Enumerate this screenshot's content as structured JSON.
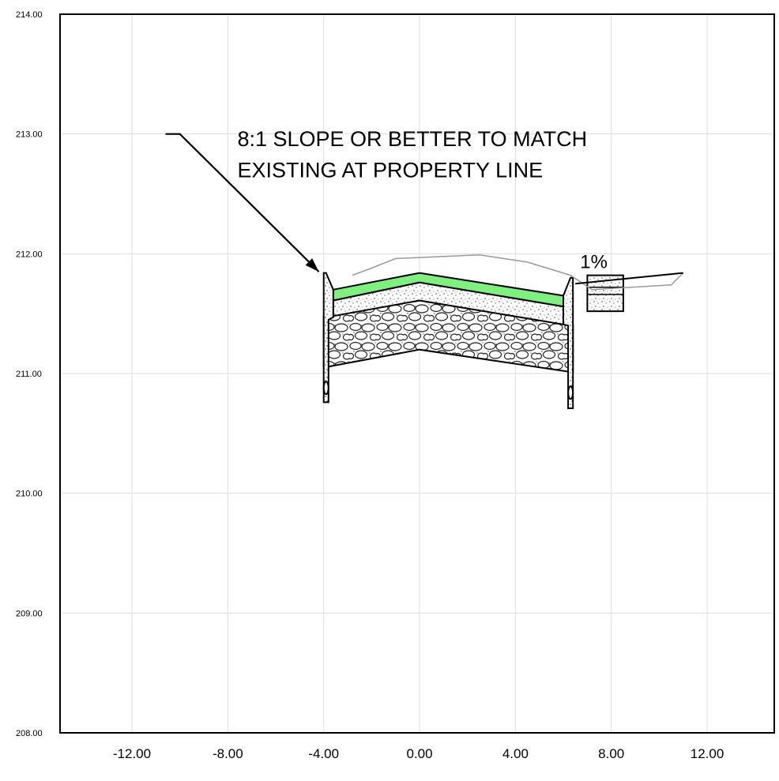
{
  "chart_data": {
    "type": "cross-section",
    "xlim": [
      -15.0,
      14.8
    ],
    "ylim": [
      208.0,
      214.0
    ],
    "x_ticks": [
      "-12.00",
      "-8.00",
      "-4.00",
      "0.00",
      "4.00",
      "8.00",
      "12.00"
    ],
    "y_ticks": [
      "214.00",
      "213.00",
      "212.00",
      "211.00",
      "210.00",
      "209.00",
      "208.00"
    ],
    "grid": true,
    "annotations": {
      "callout_line1": "8:1 SLOPE OR BETTER TO MATCH",
      "callout_line2": "EXISTING AT PROPERTY LINE",
      "slope_label": "1%"
    },
    "existing_ground": [
      [
        -2.8,
        211.82
      ],
      [
        -2.0,
        211.88
      ],
      [
        -1.0,
        211.96
      ],
      [
        2.5,
        211.99
      ],
      [
        4.5,
        211.93
      ],
      [
        6.3,
        211.82
      ],
      [
        7.2,
        211.7
      ],
      [
        10.5,
        211.74
      ],
      [
        11.0,
        211.84
      ]
    ],
    "finished_grade": [
      [
        6.5,
        211.75
      ],
      [
        11.0,
        211.84
      ]
    ],
    "pavement_top": [
      [
        -3.6,
        211.7
      ],
      [
        0.0,
        211.84
      ],
      [
        6.0,
        211.65
      ]
    ],
    "asphalt_bottom": [
      [
        -3.6,
        211.61
      ],
      [
        0.0,
        211.76
      ],
      [
        6.0,
        211.56
      ]
    ],
    "base_bottom": [
      [
        -3.6,
        211.48
      ],
      [
        0.0,
        211.61
      ],
      [
        6.0,
        211.41
      ]
    ],
    "subbase_bottom": [
      [
        -3.9,
        211.05
      ],
      [
        0.0,
        211.2
      ],
      [
        6.4,
        211.01
      ]
    ],
    "curb_left": {
      "x_back": -4.0,
      "x_face": -3.6,
      "top": 211.84,
      "bottom": 210.76
    },
    "curb_right": {
      "x_face": 6.0,
      "x_back": 6.4,
      "top": 211.8,
      "bottom": 210.71
    },
    "sidewalk_right": {
      "x_start": 7.0,
      "x_end": 8.5,
      "top": 211.82,
      "bottom": 211.52
    },
    "colors": {
      "asphalt": "#7ff07f",
      "grid": "#dddddd",
      "existing_ground": "#999999"
    }
  }
}
